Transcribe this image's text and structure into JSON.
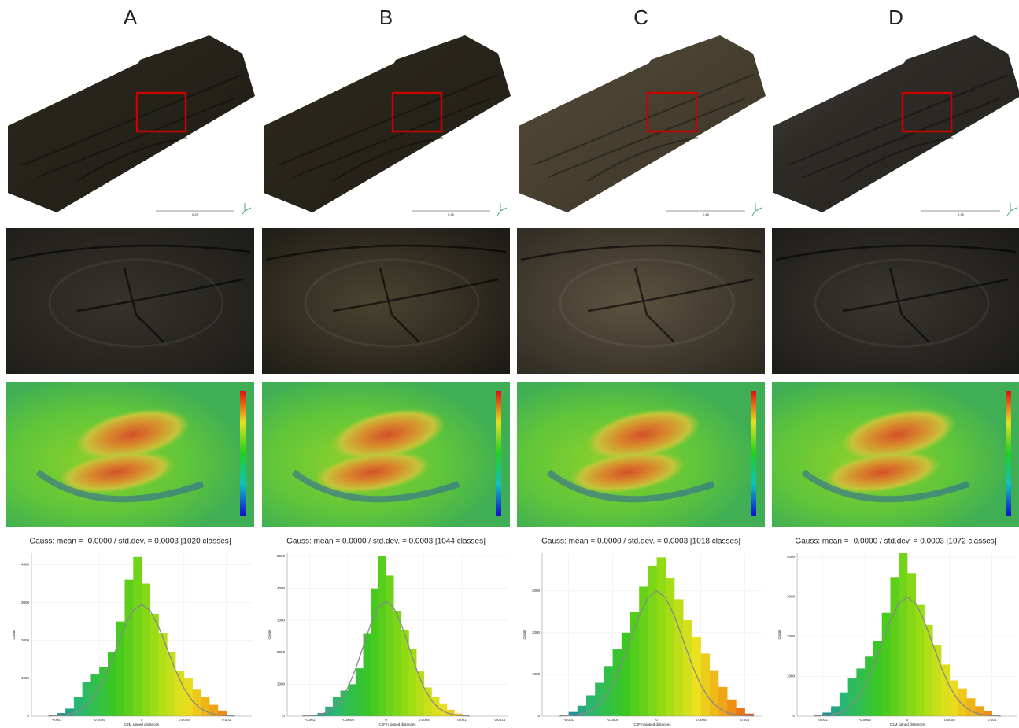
{
  "panels": [
    {
      "label": "A",
      "scale_label": "0.25",
      "gauss_text": "Gauss: mean = -0.0000 / std.dev. = 0.0003 [1020 classes]",
      "histogram": {
        "type": "histogram",
        "x_label": "C2M signed distances",
        "y_label": "Count",
        "bins": [
          -0.0011,
          -0.001,
          -0.0009,
          -0.0008,
          -0.0007,
          -0.0006,
          -0.0005,
          -0.0004,
          -0.0003,
          -0.0002,
          -0.0001,
          0,
          0.0001,
          0.0002,
          0.0003,
          0.0004,
          0.0005,
          0.0006,
          0.0007,
          0.0008,
          0.0009,
          0.001,
          0.0011
        ],
        "counts": [
          20,
          80,
          200,
          500,
          900,
          1100,
          1300,
          1700,
          2500,
          3600,
          4200,
          3500,
          2700,
          2200,
          1700,
          1200,
          1000,
          700,
          500,
          300,
          150,
          40
        ],
        "gauss_curve": [
          4,
          12,
          32,
          86,
          195,
          398,
          735,
          1212,
          1790,
          2363,
          2790,
          2950,
          2790,
          2363,
          1790,
          1212,
          735,
          398,
          195,
          86,
          32,
          12,
          4
        ],
        "xlim": [
          -0.0013,
          0.0013
        ],
        "ylim": [
          0,
          4300
        ],
        "xticks": [
          -0.001,
          -0.0005,
          0,
          0.0005,
          0.001
        ],
        "yticks": [
          0,
          1000,
          2000,
          3000,
          4000
        ]
      }
    },
    {
      "label": "B",
      "scale_label": "0.35",
      "gauss_text": "Gauss: mean = 0.0000 / std.dev. = 0.0003 [1044 classes]",
      "histogram": {
        "type": "histogram",
        "x_label": "C2Fm signed distances",
        "y_label": "Count",
        "bins": [
          -0.0011,
          -0.001,
          -0.0009,
          -0.0008,
          -0.0007,
          -0.0006,
          -0.0005,
          -0.0004,
          -0.0003,
          -0.0002,
          -0.0001,
          0,
          0.0001,
          0.0002,
          0.0003,
          0.0004,
          0.0005,
          0.0006,
          0.0007,
          0.0008,
          0.0009,
          0.001,
          0.0011
        ],
        "counts": [
          10,
          40,
          100,
          300,
          600,
          800,
          1000,
          1500,
          2600,
          4000,
          5000,
          4400,
          3300,
          2700,
          2100,
          1400,
          900,
          600,
          400,
          200,
          80,
          20
        ],
        "gauss_curve": [
          4,
          14,
          40,
          104,
          238,
          486,
          896,
          1480,
          2185,
          2884,
          3406,
          3600,
          3406,
          2884,
          2185,
          1480,
          896,
          486,
          238,
          104,
          40,
          14,
          4
        ],
        "xlim": [
          -0.0013,
          0.0016
        ],
        "ylim": [
          0,
          5100
        ],
        "xticks": [
          -0.001,
          -0.0005,
          0,
          0.0005,
          0.001,
          0.0015
        ],
        "yticks": [
          0,
          1000,
          2000,
          3000,
          4000,
          5000
        ]
      }
    },
    {
      "label": "C",
      "scale_label": "0.15",
      "gauss_text": "Gauss: mean = 0.0000 / std.dev. = 0.0003 [1018 classes]",
      "histogram": {
        "type": "histogram",
        "x_label": "C2Fm signed distances",
        "y_label": "Count",
        "bins": [
          -0.0011,
          -0.001,
          -0.0009,
          -0.0008,
          -0.0007,
          -0.0006,
          -0.0005,
          -0.0004,
          -0.0003,
          -0.0002,
          -0.0001,
          0,
          0.0001,
          0.0002,
          0.0003,
          0.0004,
          0.0005,
          0.0006,
          0.0007,
          0.0008,
          0.0009,
          0.001,
          0.0011
        ],
        "counts": [
          30,
          100,
          250,
          500,
          800,
          1200,
          1600,
          2000,
          2500,
          3100,
          3600,
          3800,
          3300,
          2800,
          2300,
          1900,
          1500,
          1100,
          700,
          400,
          200,
          60
        ],
        "gauss_curve": [
          4,
          12,
          33,
          87,
          198,
          405,
          747,
          1233,
          1821,
          2403,
          2838,
          3000,
          2838,
          2403,
          1821,
          1233,
          747,
          405,
          198,
          87,
          33,
          12,
          4
        ],
        "xlim": [
          -0.0013,
          0.0012
        ],
        "ylim": [
          0,
          3900
        ],
        "xticks": [
          -0.001,
          -0.0005,
          0,
          0.0005,
          0.001
        ],
        "yticks": [
          0,
          1000,
          2000,
          3000
        ]
      }
    },
    {
      "label": "D",
      "scale_label": "0.35",
      "gauss_text": "Gauss: mean = -0.0000 / std.dev. = 0.0003 [1072 classes]",
      "histogram": {
        "type": "histogram",
        "x_label": "C2M signed distances",
        "y_label": "Count",
        "bins": [
          -0.0011,
          -0.001,
          -0.0009,
          -0.0008,
          -0.0007,
          -0.0006,
          -0.0005,
          -0.0004,
          -0.0003,
          -0.0002,
          -0.0001,
          0,
          0.0001,
          0.0002,
          0.0003,
          0.0004,
          0.0005,
          0.0006,
          0.0007,
          0.0008,
          0.0009,
          0.001,
          0.0011
        ],
        "counts": [
          20,
          90,
          250,
          600,
          950,
          1200,
          1500,
          1900,
          2600,
          3500,
          4100,
          3600,
          2800,
          2300,
          1800,
          1300,
          900,
          700,
          450,
          250,
          120,
          30
        ],
        "gauss_curve": [
          4,
          12,
          33,
          87,
          198,
          405,
          747,
          1233,
          1821,
          2403,
          2838,
          3000,
          2838,
          2403,
          1821,
          1233,
          747,
          405,
          198,
          87,
          33,
          12,
          4
        ],
        "xlim": [
          -0.0013,
          0.0013
        ],
        "ylim": [
          0,
          4100
        ],
        "xticks": [
          -0.001,
          -0.0005,
          0,
          0.0005,
          0.001
        ],
        "yticks": [
          0,
          1000,
          2000,
          3000,
          4000
        ]
      }
    }
  ]
}
